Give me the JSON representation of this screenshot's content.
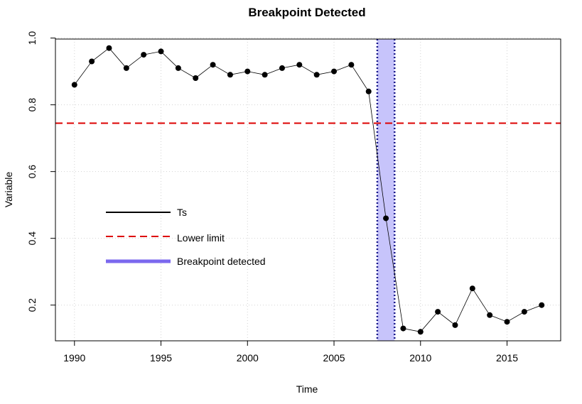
{
  "chart_data": {
    "type": "line",
    "title": "Breakpoint Detected",
    "xlabel": "Time",
    "ylabel": "Variable",
    "xlim": [
      1988.9,
      2018.1
    ],
    "ylim": [
      0.093,
      0.997
    ],
    "x_ticks": [
      1990,
      1995,
      2000,
      2005,
      2010,
      2015
    ],
    "y_ticks": [
      0.2,
      0.4,
      0.6,
      0.8,
      1.0
    ],
    "y_tick_labels": [
      "0.2",
      "0.4",
      "0.6",
      "0.8",
      "1.0"
    ],
    "grid": true,
    "series": [
      {
        "name": "Ts",
        "color": "#000000",
        "x": [
          1990,
          1991,
          1992,
          1993,
          1994,
          1995,
          1996,
          1997,
          1998,
          1999,
          2000,
          2001,
          2002,
          2003,
          2004,
          2005,
          2006,
          2007,
          2008,
          2009,
          2010,
          2011,
          2012,
          2013,
          2014,
          2015,
          2016,
          2017
        ],
        "values": [
          0.86,
          0.93,
          0.97,
          0.91,
          0.95,
          0.96,
          0.91,
          0.88,
          0.92,
          0.89,
          0.9,
          0.89,
          0.91,
          0.92,
          0.89,
          0.9,
          0.92,
          0.84,
          0.46,
          0.13,
          0.12,
          0.18,
          0.14,
          0.25,
          0.17,
          0.15,
          0.18,
          0.2
        ]
      }
    ],
    "lower_limit": {
      "name": "Lower limit",
      "value": 0.745,
      "color": "#dd0000"
    },
    "breakpoint": {
      "name": "Breakpoint detected",
      "x_start": 2007.5,
      "x_end": 2008.5,
      "fill": "#c7c4fb",
      "edge_color": "#1a1a8c",
      "legend_color": "#7b68ee"
    },
    "legend": {
      "placement": "middle-left",
      "entries": [
        "Ts",
        "Lower limit",
        "Breakpoint detected"
      ]
    }
  }
}
